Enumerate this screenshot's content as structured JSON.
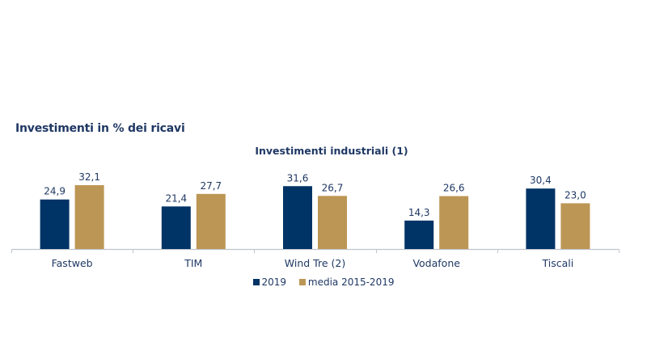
{
  "section_title": "Investimenti in % dei ricavi",
  "colors": {
    "series_2019": "#003366",
    "series_media": "#BC9655",
    "axis": "#BFC4CC",
    "text": "#1F3864"
  },
  "chart_data": {
    "type": "bar",
    "title": "Investimenti industriali (1)",
    "xlabel": "",
    "ylabel": "",
    "categories": [
      "Fastweb",
      "TIM",
      "Wind Tre (2)",
      "Vodafone",
      "Tiscali"
    ],
    "series": [
      {
        "name": "2019",
        "values": [
          24.9,
          21.4,
          31.6,
          14.3,
          30.4
        ],
        "labels": [
          "24,9",
          "21,4",
          "31,6",
          "14,3",
          "30,4"
        ]
      },
      {
        "name": "media 2015-2019",
        "values": [
          32.1,
          27.7,
          26.7,
          26.6,
          23.0
        ],
        "labels": [
          "32,1",
          "27,7",
          "26,7",
          "26,6",
          "23,0"
        ]
      }
    ],
    "ylim": [
      0,
      35
    ],
    "grid": false,
    "legend": "bottom-center",
    "data_labels": true
  }
}
